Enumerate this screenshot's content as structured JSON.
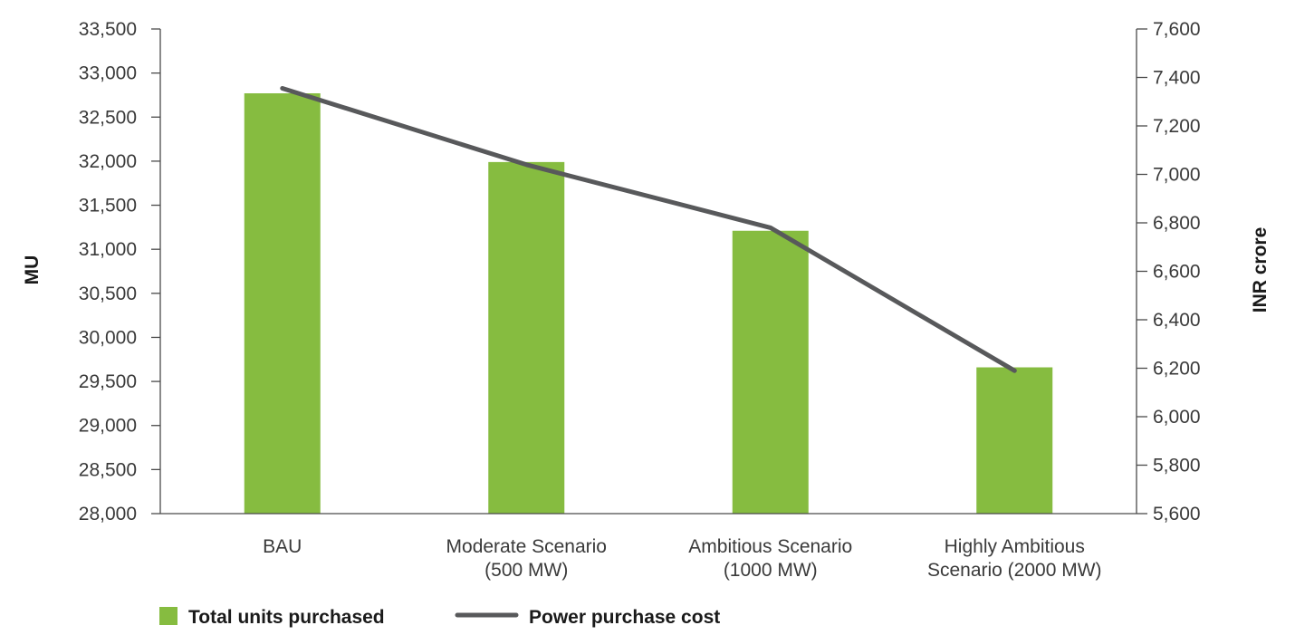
{
  "chart_data": {
    "type": "bar",
    "categories": [
      [
        "BAU"
      ],
      [
        "Moderate Scenario",
        "(500 MW)"
      ],
      [
        "Ambitious Scenario",
        "(1000 MW)"
      ],
      [
        "Highly Ambitious",
        "Scenario (2000 MW)"
      ]
    ],
    "series": [
      {
        "name": "Total units purchased",
        "type": "bar",
        "axis": "left",
        "color": "#86bc40",
        "values": [
          32770,
          31990,
          31210,
          29660
        ]
      },
      {
        "name": "Power purchase cost",
        "type": "line",
        "axis": "right",
        "color": "#58595b",
        "values": [
          7355,
          7040,
          6780,
          6190
        ]
      }
    ],
    "left_axis": {
      "label": "MU",
      "min": 28000,
      "max": 33500,
      "step": 500,
      "ticks": [
        "28,000",
        "28,500",
        "29,000",
        "29,500",
        "30,000",
        "30,500",
        "31,000",
        "31,500",
        "32,000",
        "32,500",
        "33,000",
        "33,500"
      ]
    },
    "right_axis": {
      "label": "INR crore",
      "min": 5600,
      "max": 7600,
      "step": 200,
      "ticks": [
        "5,600",
        "5,800",
        "6,000",
        "6,200",
        "6,400",
        "6,600",
        "6,800",
        "7,000",
        "7,200",
        "7,400",
        "7,600"
      ]
    },
    "xlabel": "",
    "grid": false,
    "legend": {
      "placement": "bottom-left",
      "entries": [
        "Total units purchased",
        "Power purchase cost"
      ]
    }
  }
}
